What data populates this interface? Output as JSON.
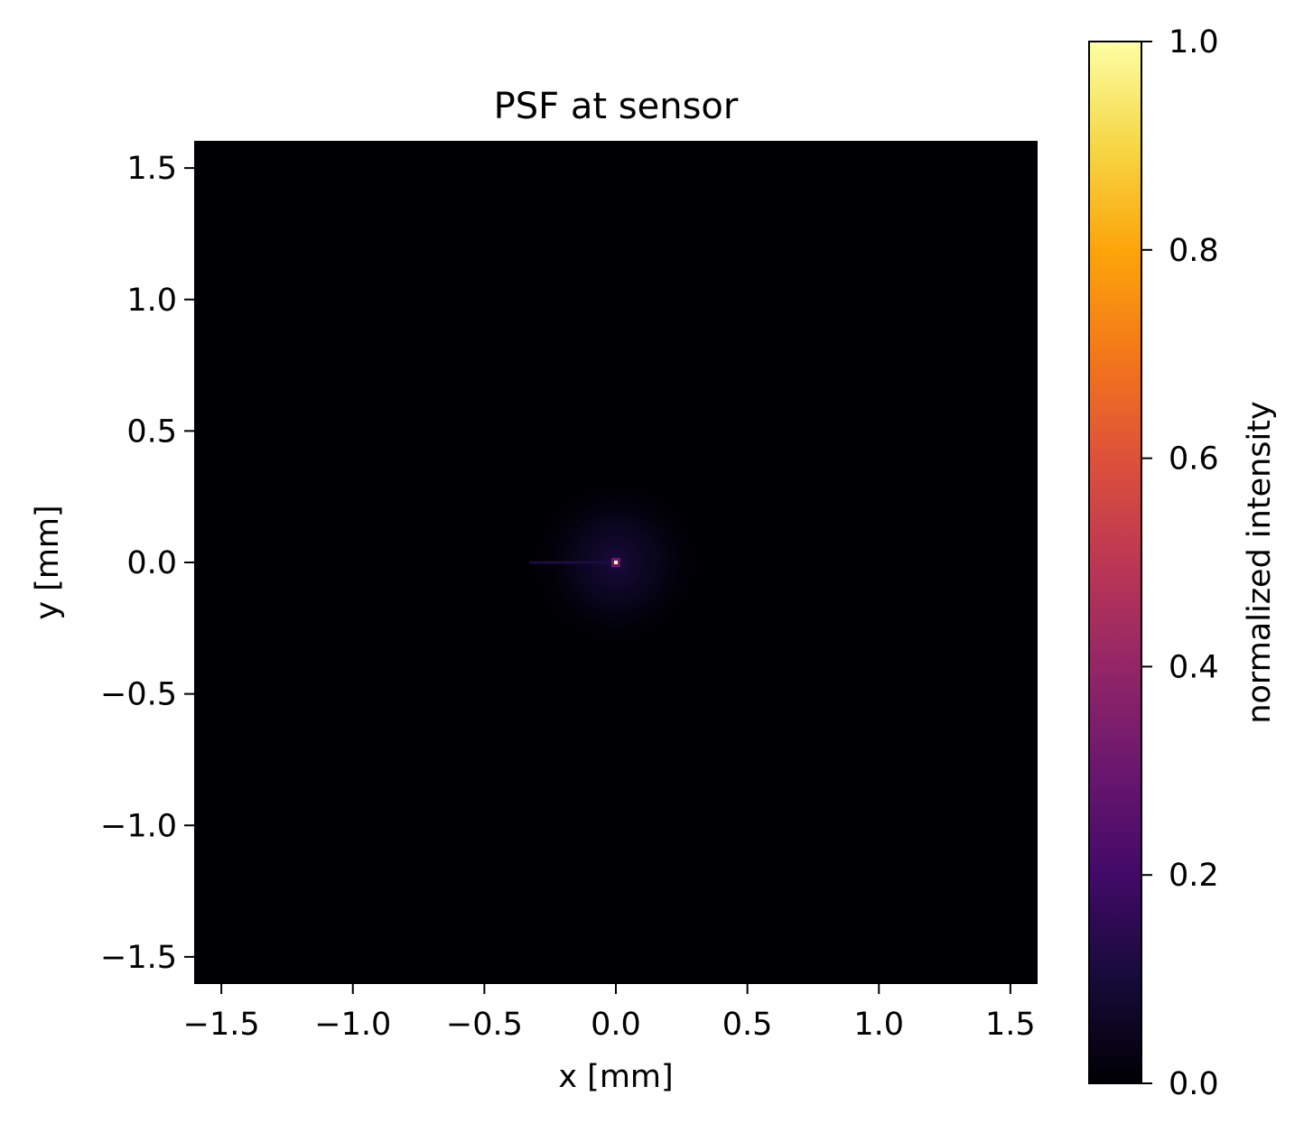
{
  "chart_data": {
    "type": "heatmap",
    "title": "PSF at sensor",
    "xlabel": "x [mm]",
    "ylabel": "y [mm]",
    "xlim": [
      -1.6,
      1.6
    ],
    "ylim": [
      -1.6,
      1.6
    ],
    "xticks": [
      -1.5,
      -1.0,
      -0.5,
      0.0,
      0.5,
      1.0,
      1.5
    ],
    "yticks": [
      -1.5,
      -1.0,
      -0.5,
      0.0,
      0.5,
      1.0,
      1.5
    ],
    "xtick_labels": [
      "−1.5",
      "−1.0",
      "−0.5",
      "0.0",
      "0.5",
      "1.0",
      "1.5"
    ],
    "ytick_labels": [
      "−1.5",
      "−1.0",
      "−0.5",
      "0.0",
      "0.5",
      "1.0",
      "1.5"
    ],
    "colormap": "inferno",
    "colorbar": {
      "label": "normalized intensity",
      "range": [
        0.0,
        1.0
      ],
      "ticks": [
        0.0,
        0.2,
        0.4,
        0.6,
        0.8,
        1.0
      ],
      "tick_labels": [
        "0.0",
        "0.2",
        "0.4",
        "0.6",
        "0.8",
        "1.0"
      ]
    },
    "peak": {
      "x": 0.0,
      "y": 0.0,
      "value": 1.0
    },
    "halo": {
      "x": 0.0,
      "y": 0.0,
      "radius": 0.33,
      "value": 0.04
    },
    "streak": {
      "x_from": -0.33,
      "x_to": 0.0,
      "y": 0.0,
      "value": 0.08
    },
    "background_value": 0.0,
    "grid": false
  },
  "colors": {
    "background": "#000004",
    "peak": "#fcffa4",
    "peak_ring": "#6a176e",
    "halo": "#0d0829",
    "streak": "#1b0c41"
  }
}
